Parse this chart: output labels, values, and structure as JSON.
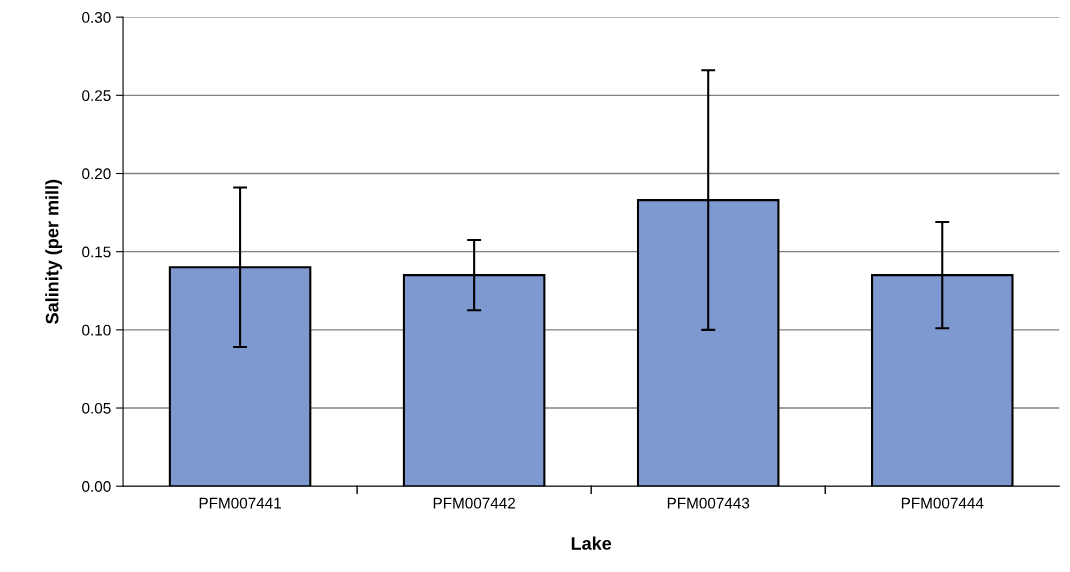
{
  "chart_data": {
    "type": "bar",
    "xlabel": "Lake",
    "ylabel": "Salinity (per mill)",
    "categories": [
      "PFM007441",
      "PFM007442",
      "PFM007443",
      "PFM007444"
    ],
    "values": [
      0.14,
      0.135,
      0.183,
      0.135
    ],
    "errors": [
      0.051,
      0.0225,
      0.083,
      0.034
    ],
    "color": "#7e99cf",
    "ylim": [
      0,
      0.3
    ],
    "yticks": [
      {
        "value": 0,
        "label": "0.00"
      },
      {
        "value": 0.05,
        "label": "0.05"
      },
      {
        "value": 0.1,
        "label": "0.10"
      },
      {
        "value": 0.15,
        "label": "0.15"
      },
      {
        "value": 0.2,
        "label": "0.20"
      },
      {
        "value": 0.25,
        "label": "0.25"
      },
      {
        "value": 0.3,
        "label": "0.30"
      }
    ],
    "grid": "y",
    "legend": false
  }
}
